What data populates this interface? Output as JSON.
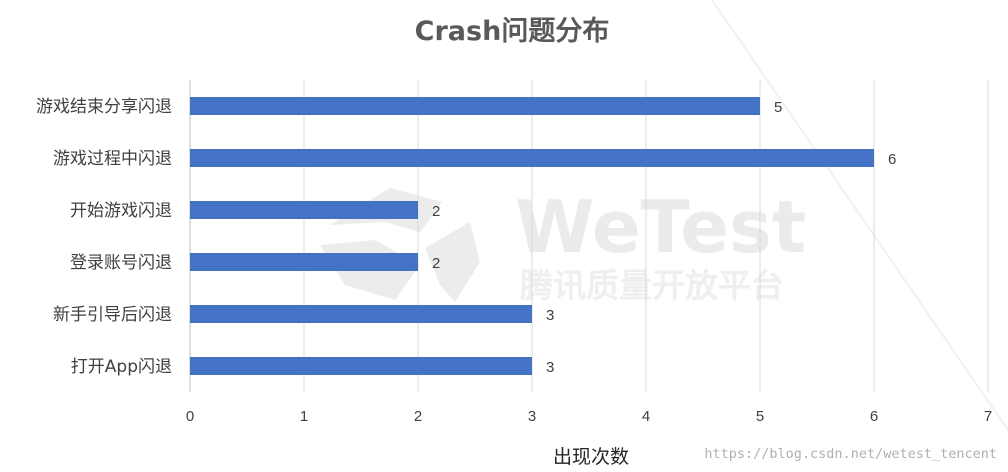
{
  "chart_data": {
    "type": "bar",
    "orientation": "horizontal",
    "title": "Crash问题分布",
    "categories": [
      "游戏结束分享闪退",
      "游戏过程中闪退",
      "开始游戏闪退",
      "登录账号闪退",
      "新手引导后闪退",
      "打开App闪退"
    ],
    "values": [
      5,
      6,
      2,
      2,
      3,
      3
    ],
    "xlabel": "出现次数",
    "ylabel": "",
    "xlim": [
      0,
      7
    ],
    "x_ticks": [
      "0",
      "1",
      "2",
      "3",
      "4",
      "5",
      "6",
      "7"
    ],
    "grid": true,
    "bar_color": "#4472c4"
  },
  "watermark": {
    "logo_text": "WeTest",
    "logo_subtext": "腾讯质量开放平台",
    "url": "https://blog.csdn.net/wetest_tencent"
  }
}
